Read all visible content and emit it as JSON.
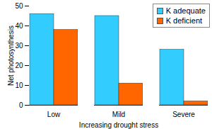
{
  "chart_data": {
    "type": "bar",
    "categories": [
      "Low",
      "Mild",
      "Severe"
    ],
    "series": [
      {
        "name": "K adequate",
        "color": "#33CCFF",
        "values": [
          46,
          45,
          28
        ]
      },
      {
        "name": "K deficient",
        "color": "#FF6600",
        "values": [
          38,
          11,
          2
        ]
      }
    ],
    "x_label": "Increasing drought stress",
    "y_label": "Net photosynthesis",
    "ylim": [
      0,
      50
    ],
    "yticks": [
      0,
      10,
      20,
      30,
      40,
      50
    ],
    "grid": false,
    "legend": "top-right"
  }
}
